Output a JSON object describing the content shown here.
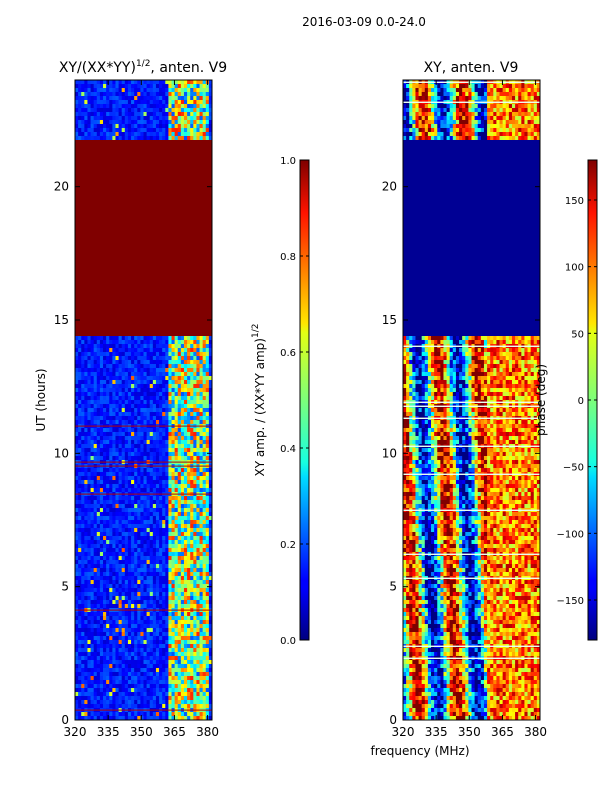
{
  "figure": {
    "suptitle": "2016-03-09 0.0-24.0",
    "shared_xlabel": "frequency (MHz)"
  },
  "chart_data": [
    {
      "type": "heatmap",
      "title_main": "XY/(XX*YY)",
      "title_sup": "1/2",
      "title_rest": ", anten. V9",
      "xlabel": "frequency (MHz)",
      "ylabel": "UT (hours)",
      "xlim": [
        320,
        382
      ],
      "ylim": [
        0,
        24
      ],
      "xticks": [
        "320",
        "335",
        "350",
        "365",
        "380"
      ],
      "xtick_values": [
        320,
        335,
        350,
        365,
        380
      ],
      "yticks": [
        "0",
        "5",
        "10",
        "15",
        "20"
      ],
      "ytick_values": [
        0,
        5,
        10,
        15,
        20
      ],
      "colorbar": {
        "label_main": "XY amp. / (XX*YY amp)",
        "label_sup": "1/2",
        "range": [
          0.0,
          1.0
        ],
        "ticks": [
          "0.0",
          "0.2",
          "0.4",
          "0.6",
          "0.8",
          "1.0"
        ],
        "tick_values": [
          0.0,
          0.2,
          0.4,
          0.6,
          0.8,
          1.0
        ],
        "colormap": "jet"
      },
      "regions": [
        {
          "name": "low amplitude",
          "ut_range": [
            0,
            14.4
          ],
          "value": 0.05
        },
        {
          "name": "saturated",
          "ut_range": [
            14.4,
            21.7
          ],
          "value": 1.0
        },
        {
          "name": "low amplitude",
          "ut_range": [
            21.7,
            24
          ],
          "value": 0.05
        }
      ]
    },
    {
      "type": "heatmap",
      "title_main": "XY, anten. V9",
      "xlabel": "frequency (MHz)",
      "ylabel": "",
      "xlim": [
        320,
        382
      ],
      "ylim": [
        0,
        24
      ],
      "xticks": [
        "320",
        "335",
        "350",
        "365",
        "380"
      ],
      "xtick_values": [
        320,
        335,
        350,
        365,
        380
      ],
      "yticks": [
        "0",
        "5",
        "10",
        "15",
        "20"
      ],
      "ytick_values": [
        0,
        5,
        10,
        15,
        20
      ],
      "colorbar": {
        "label_main": "phase (deg)",
        "range": [
          -180,
          180
        ],
        "ticks": [
          "−150",
          "−100",
          "−50",
          "0",
          "50",
          "100",
          "150"
        ],
        "tick_values": [
          -150,
          -100,
          -50,
          0,
          50,
          100,
          150
        ],
        "colormap": "jet"
      },
      "regions": [
        {
          "name": "structured phase",
          "ut_range": [
            0,
            14.4
          ],
          "value": 0
        },
        {
          "name": "flat",
          "ut_range": [
            14.4,
            21.7
          ],
          "value": -180
        },
        {
          "name": "structured phase",
          "ut_range": [
            21.7,
            24
          ],
          "value": 0
        }
      ]
    }
  ],
  "colors": {
    "jet_dark_red": "#800000",
    "jet_dark_blue": "#00008f",
    "background": "#ffffff"
  }
}
